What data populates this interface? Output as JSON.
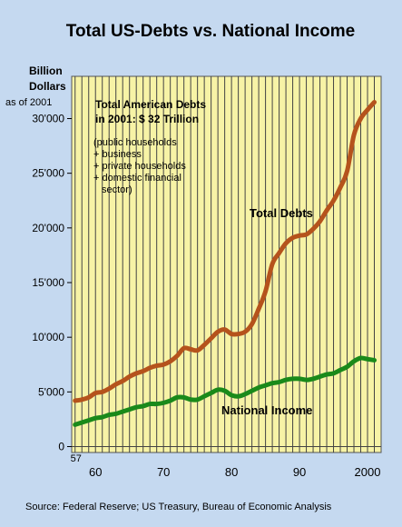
{
  "chart_data": {
    "type": "line",
    "title": "Total US-Debts vs. National Income",
    "ylabel": [
      "Billion",
      "Dollars",
      "as of 2001"
    ],
    "xlabel": "",
    "ylim": [
      0,
      34000
    ],
    "xlim": [
      1956.5,
      2002
    ],
    "yticks": [
      "0",
      "5'000",
      "10'000",
      "15'000",
      "20'000",
      "25'000",
      "30'000"
    ],
    "ytick_values": [
      0,
      5000,
      10000,
      15000,
      20000,
      25000,
      30000
    ],
    "xticks": [
      "57",
      "60",
      "70",
      "80",
      "90",
      "2000"
    ],
    "xtick_values": [
      1957,
      1960,
      1970,
      1980,
      1990,
      2000
    ],
    "grid": "vertical",
    "x": [
      1957,
      1958,
      1959,
      1960,
      1961,
      1962,
      1963,
      1964,
      1965,
      1966,
      1967,
      1968,
      1969,
      1970,
      1971,
      1972,
      1973,
      1974,
      1975,
      1976,
      1977,
      1978,
      1979,
      1980,
      1981,
      1982,
      1983,
      1984,
      1985,
      1986,
      1987,
      1988,
      1989,
      1990,
      1991,
      1992,
      1993,
      1994,
      1995,
      1996,
      1997,
      1998,
      1999,
      2000,
      2001
    ],
    "series": [
      {
        "name": "Total Debts",
        "color": "#b5531c",
        "values": [
          4200,
          4300,
          4500,
          4900,
          5000,
          5300,
          5700,
          6000,
          6400,
          6700,
          6900,
          7200,
          7400,
          7500,
          7800,
          8300,
          9000,
          8900,
          8800,
          9300,
          9900,
          10500,
          10700,
          10300,
          10300,
          10500,
          11200,
          12600,
          14200,
          16700,
          17700,
          18600,
          19100,
          19300,
          19400,
          19900,
          20600,
          21600,
          22500,
          23700,
          25200,
          28500,
          30000,
          30800,
          31500
        ]
      },
      {
        "name": "National Income",
        "color": "#1a8a1a",
        "values": [
          2000,
          2200,
          2400,
          2600,
          2700,
          2900,
          3000,
          3200,
          3400,
          3600,
          3700,
          3900,
          3900,
          4000,
          4200,
          4500,
          4500,
          4300,
          4300,
          4600,
          4900,
          5200,
          5100,
          4700,
          4600,
          4800,
          5100,
          5400,
          5600,
          5800,
          5900,
          6100,
          6200,
          6200,
          6100,
          6200,
          6400,
          6600,
          6700,
          7000,
          7300,
          7800,
          8100,
          8000,
          7900
        ]
      }
    ],
    "annotations": {
      "box_line1": "Total American Debts",
      "box_line2": "in 2001: $ 32 Trillion",
      "components": [
        "(public households",
        "+ business",
        "+ private households",
        "+ domestic financial",
        "sector)"
      ]
    },
    "source": "Source: Federal Reserve; US Treasury, Bureau of Economic Analysis"
  }
}
